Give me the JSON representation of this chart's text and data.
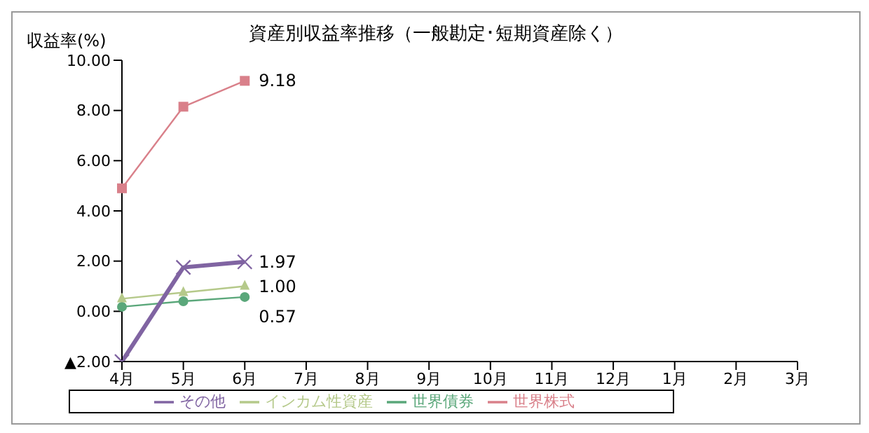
{
  "chart_data": {
    "type": "line",
    "title": "資産別収益率推移（一般勘定･短期資産除く）",
    "ylabel": "収益率(%)",
    "categories": [
      "4月",
      "5月",
      "6月",
      "7月",
      "8月",
      "9月",
      "10月",
      "11月",
      "12月",
      "1月",
      "2月",
      "3月"
    ],
    "series": [
      {
        "name": "世界債券",
        "color": "#5aa77a",
        "marker": "circle",
        "values": [
          0.18,
          0.4,
          0.57,
          null,
          null,
          null,
          null,
          null,
          null,
          null,
          null,
          null
        ],
        "value_labels": [
          null,
          null,
          "0.57",
          null,
          null,
          null,
          null,
          null,
          null,
          null,
          null,
          null
        ]
      },
      {
        "name": "インカム性資産",
        "color": "#b5c98a",
        "marker": "triangle",
        "values": [
          0.5,
          0.75,
          1.0,
          null,
          null,
          null,
          null,
          null,
          null,
          null,
          null,
          null
        ],
        "value_labels": [
          null,
          null,
          "1.00",
          null,
          null,
          null,
          null,
          null,
          null,
          null,
          null,
          null
        ]
      },
      {
        "name": "世界株式",
        "color": "#d9808a",
        "marker": "square",
        "values": [
          4.9,
          8.15,
          9.18,
          null,
          null,
          null,
          null,
          null,
          null,
          null,
          null,
          null
        ],
        "value_labels": [
          null,
          null,
          "9.18",
          null,
          null,
          null,
          null,
          null,
          null,
          null,
          null,
          null
        ]
      },
      {
        "name": "その他",
        "color": "#8064a2",
        "marker": "cross",
        "values": [
          -2.0,
          1.75,
          1.97,
          null,
          null,
          null,
          null,
          null,
          null,
          null,
          null,
          null
        ],
        "value_labels": [
          null,
          null,
          "1.97",
          null,
          null,
          null,
          null,
          null,
          null,
          null,
          null,
          null
        ]
      }
    ],
    "ylim": [
      -2,
      10
    ],
    "yticks": [
      {
        "value": -2,
        "label": "▲2.00"
      },
      {
        "value": 0,
        "label": "0.00"
      },
      {
        "value": 2,
        "label": "2.00"
      },
      {
        "value": 4,
        "label": "4.00"
      },
      {
        "value": 6,
        "label": "6.00"
      },
      {
        "value": 8,
        "label": "8.00"
      },
      {
        "value": 10,
        "label": "10.00"
      }
    ],
    "grid": false,
    "legend": "bottom"
  }
}
